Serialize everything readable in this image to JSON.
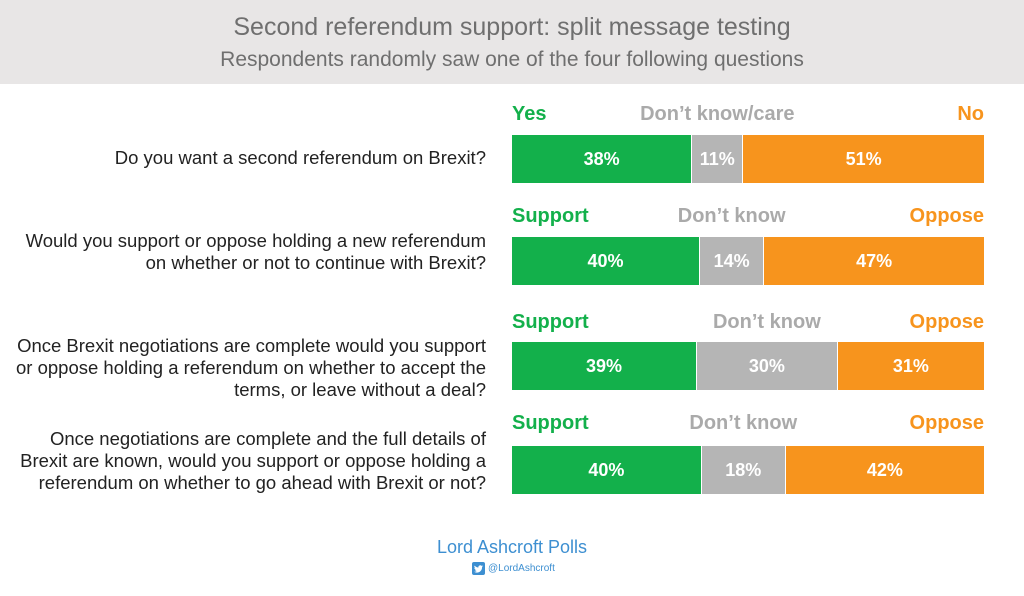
{
  "header": {
    "title": "Second referendum support: split message testing",
    "subtitle": "Respondents randomly saw one of the four following questions"
  },
  "colors": {
    "yes": "#13b04b",
    "dk": "#b5b5b5",
    "no": "#f7941d"
  },
  "chart_data": {
    "type": "bar",
    "orientation": "horizontal-stacked-100",
    "questions": [
      {
        "question": "Do you want a second referendum on Brexit?",
        "labels": {
          "yes": "Yes",
          "dk": "Don’t know/care",
          "no": "No"
        },
        "values": {
          "yes": 38,
          "dk": 11,
          "no": 51
        },
        "value_labels": {
          "yes": "38%",
          "dk": "11%",
          "no": "51%"
        }
      },
      {
        "question": "Would you support or oppose holding a new referendum on whether or not to continue with Brexit?",
        "labels": {
          "yes": "Support",
          "dk": "Don’t know",
          "no": "Oppose"
        },
        "values": {
          "yes": 40,
          "dk": 14,
          "no": 47
        },
        "value_labels": {
          "yes": "40%",
          "dk": "14%",
          "no": "47%"
        }
      },
      {
        "question": "Once Brexit negotiations are complete would you support or oppose holding a referendum on whether to accept the terms, or leave without a deal?",
        "labels": {
          "yes": "Support",
          "dk": "Don’t know",
          "no": "Oppose"
        },
        "values": {
          "yes": 39,
          "dk": 30,
          "no": 31
        },
        "value_labels": {
          "yes": "39%",
          "dk": "30%",
          "no": "31%"
        }
      },
      {
        "question": "Once negotiations are complete and the full details of Brexit are known, would you support or oppose holding a referendum on whether to go ahead with Brexit or not?",
        "labels": {
          "yes": "Support",
          "dk": "Don’t know",
          "no": "Oppose"
        },
        "values": {
          "yes": 40,
          "dk": 18,
          "no": 42
        },
        "value_labels": {
          "yes": "40%",
          "dk": "18%",
          "no": "42%"
        }
      }
    ]
  },
  "footer": {
    "brand": "Lord Ashcroft Polls",
    "handle": "@LordAshcroft",
    "icon": "twitter-icon"
  }
}
